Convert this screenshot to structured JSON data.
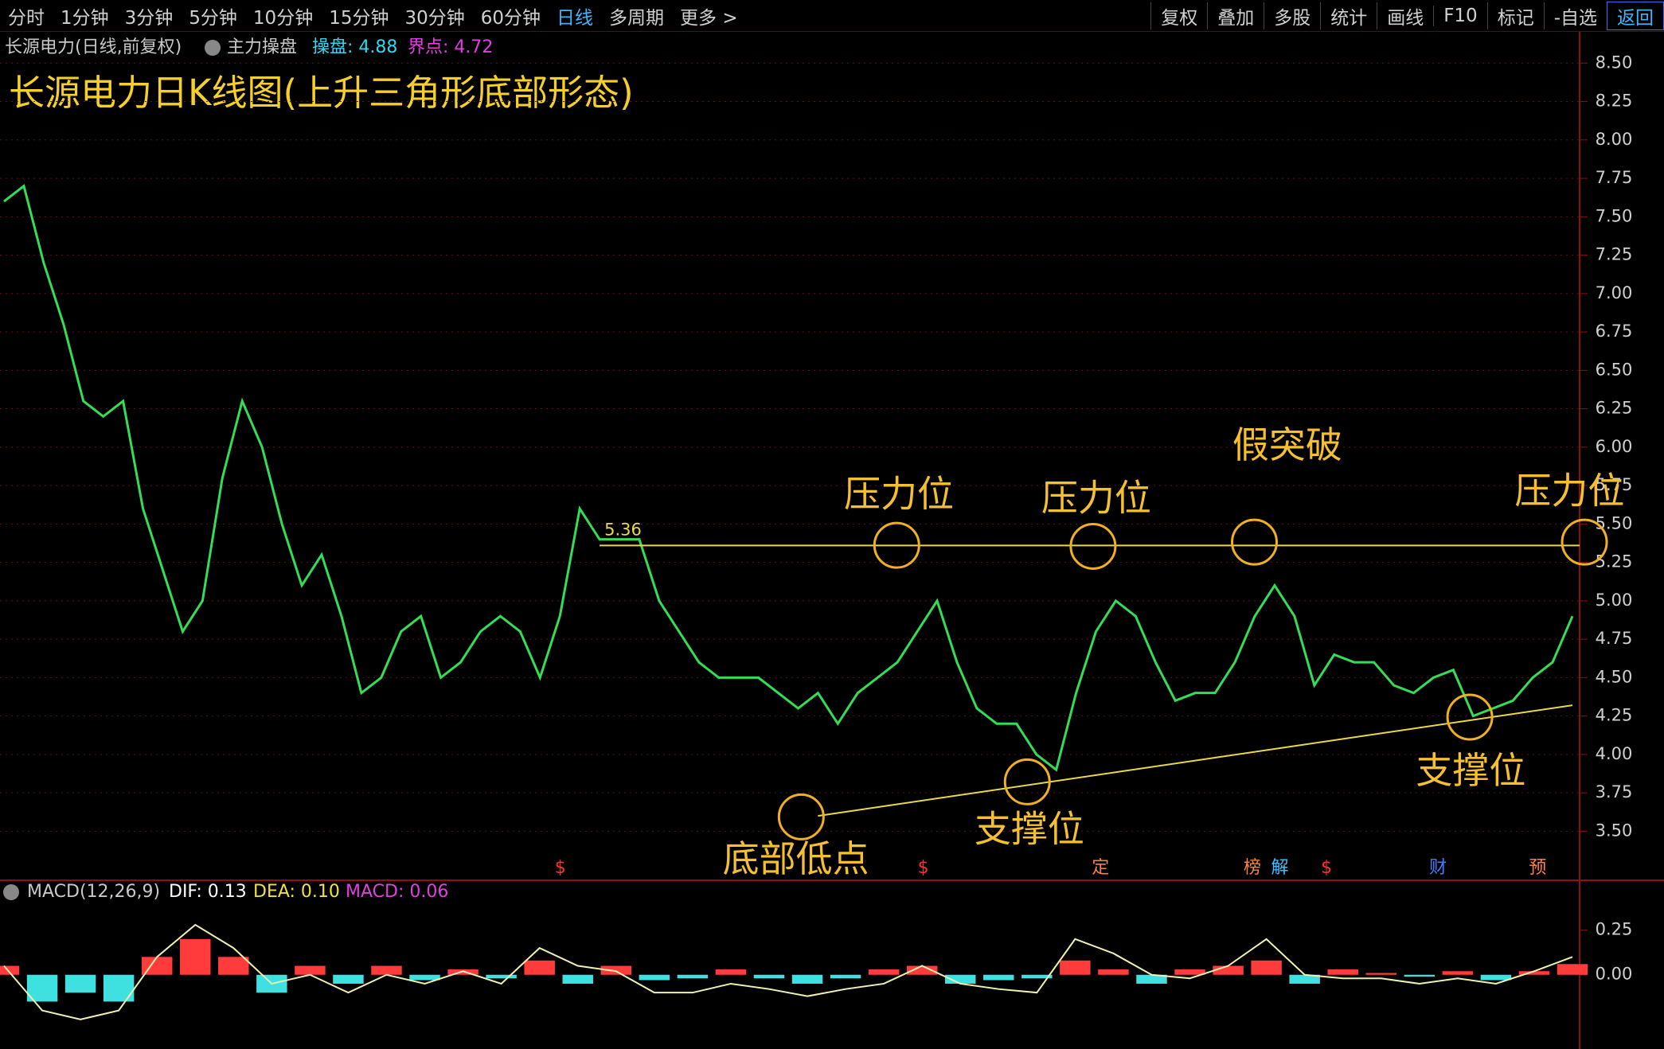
{
  "toolbar": {
    "left": [
      "分时",
      "1分钟",
      "3分钟",
      "5分钟",
      "10分钟",
      "15分钟",
      "30分钟",
      "60分钟",
      "日线",
      "多周期",
      "更多 >"
    ],
    "active_index": 8,
    "right": [
      "复权",
      "叠加",
      "多股",
      "统计",
      "画线",
      "F10",
      "标记",
      "-自选",
      "返回"
    ]
  },
  "header": {
    "security": "长源电力(日线,前复权)",
    "indicator": "主力操盘",
    "readouts": [
      "操盘: 4.88",
      "界点: 4.72"
    ]
  },
  "chart_data": [
    {
      "type": "line",
      "title": "长源电力日K线图(上升三角形底部形态)",
      "categories": [
        null,
        null,
        null,
        null,
        null,
        null,
        null,
        null,
        null,
        null,
        null,
        null,
        null,
        null,
        null,
        null,
        null,
        null,
        null,
        null,
        null,
        null,
        null,
        null,
        null,
        null,
        null,
        null,
        null,
        null,
        null,
        null,
        null,
        null,
        null,
        null,
        null,
        null,
        null,
        null,
        null,
        null,
        null,
        null,
        null,
        null,
        null,
        null,
        null,
        null,
        null,
        null,
        null,
        null,
        null,
        null,
        null,
        null,
        null,
        null,
        null,
        null,
        null,
        null,
        null,
        null,
        null,
        null,
        null,
        null,
        null,
        null,
        null,
        null,
        null,
        null,
        null,
        null,
        null,
        null
      ],
      "values": [
        7.6,
        7.7,
        7.2,
        6.8,
        6.3,
        6.2,
        6.3,
        5.6,
        5.2,
        4.8,
        5.0,
        5.8,
        6.3,
        6.0,
        5.5,
        5.1,
        5.3,
        4.9,
        4.4,
        4.5,
        4.8,
        4.9,
        4.5,
        4.6,
        4.8,
        4.9,
        4.8,
        4.5,
        4.9,
        5.6,
        5.4,
        5.4,
        5.4,
        5.0,
        4.8,
        4.6,
        4.5,
        4.5,
        4.5,
        4.4,
        4.3,
        4.4,
        4.2,
        4.4,
        4.5,
        4.6,
        4.8,
        5.0,
        4.6,
        4.3,
        4.2,
        4.2,
        4.0,
        3.9,
        4.4,
        4.8,
        5.0,
        4.9,
        4.6,
        4.35,
        4.4,
        4.4,
        4.6,
        4.9,
        5.1,
        4.9,
        4.45,
        4.65,
        4.6,
        4.6,
        4.45,
        4.4,
        4.5,
        4.55,
        4.25,
        4.3,
        4.35,
        4.5,
        4.6,
        4.9
      ],
      "color": "#33dd55",
      "ylim": [
        3.3,
        8.6
      ],
      "yticks": [
        {
          "value": 3.5,
          "label": "3.50"
        },
        {
          "value": 3.75,
          "label": "3.75"
        },
        {
          "value": 4,
          "label": "4.00"
        },
        {
          "value": 4.25,
          "label": "4.25"
        },
        {
          "value": 4.5,
          "label": "4.50"
        },
        {
          "value": 4.75,
          "label": "4.75"
        },
        {
          "value": 5,
          "label": "5.00"
        },
        {
          "value": 5.25,
          "label": "5.25"
        },
        {
          "value": 5.5,
          "label": "5.50"
        },
        {
          "value": 5.75,
          "label": "5.75"
        },
        {
          "value": 6,
          "label": "6.00"
        },
        {
          "value": 6.25,
          "label": "6.25"
        },
        {
          "value": 6.5,
          "label": "6.50"
        },
        {
          "value": 6.75,
          "label": "6.75"
        },
        {
          "value": 7,
          "label": "7.00"
        },
        {
          "value": 7.25,
          "label": "7.25"
        },
        {
          "value": 7.5,
          "label": "7.50"
        },
        {
          "value": 7.75,
          "label": "7.75"
        },
        {
          "value": 8,
          "label": "8.00"
        },
        {
          "value": 8.25,
          "label": "8.25"
        },
        {
          "value": 8.5,
          "label": "8.50"
        }
      ],
      "grid": true,
      "resistance": {
        "value": 5.36,
        "label": "5.36",
        "start": 30,
        "color": "#e8d84a"
      },
      "support_line": {
        "x": [
          41,
          79
        ],
        "values": [
          3.6,
          4.32
        ],
        "color": "#e8d84a"
      },
      "annotations": [
        "压力位",
        "压力位",
        "假突破",
        "压力位",
        "底部低点",
        "支撑位",
        "支撑位"
      ],
      "event_markers": [
        "$",
        "$",
        "定",
        "榜",
        "解",
        "$",
        "财",
        "预"
      ]
    },
    {
      "type": "macd",
      "readouts": [
        "MACD(12,26,9)",
        "DIF: 0.13",
        "DEA: 0.10",
        "MACD: 0.06"
      ],
      "values": [
        0.05,
        -0.15,
        -0.1,
        -0.15,
        0.1,
        0.2,
        0.1,
        -0.1,
        0.05,
        -0.05,
        0.05,
        -0.03,
        0.03,
        -0.02,
        0.08,
        -0.05,
        0.05,
        -0.03,
        -0.02,
        0.03,
        -0.02,
        -0.05,
        -0.02,
        0.03,
        0.05,
        -0.05,
        -0.03,
        -0.02,
        0.08,
        0.03,
        -0.05,
        0.03,
        0.05,
        0.08,
        -0.05,
        0.03,
        0.01,
        -0.01,
        0.02,
        -0.03,
        0.02,
        0.06
      ],
      "line": {
        "color": "#f0f0b0",
        "values": [
          0.05,
          -0.2,
          -0.25,
          -0.2,
          0.1,
          0.28,
          0.15,
          -0.05,
          0.0,
          -0.1,
          0.0,
          -0.05,
          0.02,
          -0.05,
          0.15,
          0.05,
          0.02,
          -0.1,
          -0.1,
          -0.05,
          -0.08,
          -0.12,
          -0.08,
          -0.05,
          0.05,
          -0.05,
          -0.08,
          -0.1,
          0.2,
          0.12,
          0.0,
          -0.02,
          0.05,
          0.2,
          0.0,
          -0.02,
          -0.02,
          -0.05,
          -0.02,
          -0.05,
          0.02,
          0.1
        ]
      },
      "up_color": "#ff3b3b",
      "down_color": "#3ee0e0",
      "ylim": [
        -0.38,
        0.4
      ],
      "yticks": [
        {
          "value": 0,
          "label": "0.00"
        },
        {
          "value": 0.25,
          "label": "0.25"
        }
      ]
    }
  ]
}
